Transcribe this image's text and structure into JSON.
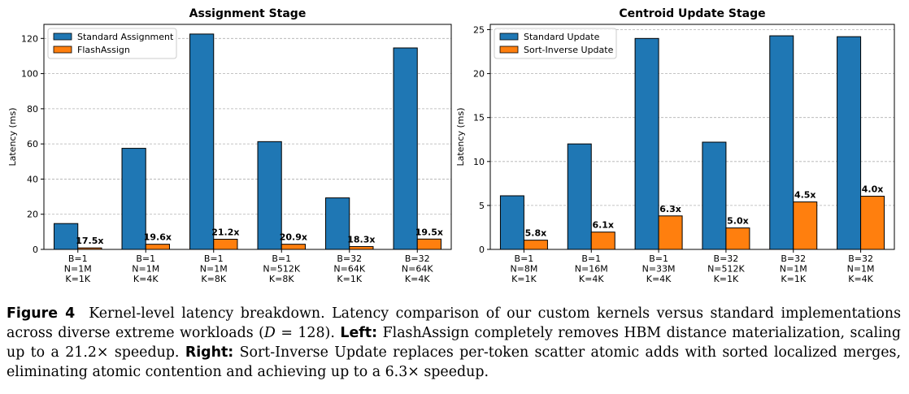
{
  "chart_data": [
    {
      "type": "bar",
      "title": "Assignment Stage",
      "xlabel": "",
      "ylabel": "Latency (ms)",
      "ylim": [
        0,
        128
      ],
      "yticks": [
        0,
        20,
        40,
        60,
        80,
        100,
        120
      ],
      "grid": "y-dashed",
      "legend_position": "top-left",
      "categories": [
        [
          "B=1",
          "N=1M",
          "K=1K"
        ],
        [
          "B=1",
          "N=1M",
          "K=4K"
        ],
        [
          "B=1",
          "N=1M",
          "K=8K"
        ],
        [
          "B=1",
          "N=512K",
          "K=8K"
        ],
        [
          "B=32",
          "N=64K",
          "K=1K"
        ],
        [
          "B=32",
          "N=64K",
          "K=4K"
        ]
      ],
      "series": [
        {
          "name": "Standard Assignment",
          "color": "#1f77b4",
          "values": [
            14.7,
            57.5,
            122.5,
            61.3,
            29.3,
            114.6
          ]
        },
        {
          "name": "FlashAssign",
          "color": "#ff7f0e",
          "values": [
            0.84,
            2.93,
            5.78,
            2.93,
            1.6,
            5.88
          ]
        }
      ],
      "annotations": [
        "17.5x",
        "19.6x",
        "21.2x",
        "20.9x",
        "18.3x",
        "19.5x"
      ]
    },
    {
      "type": "bar",
      "title": "Centroid Update Stage",
      "xlabel": "",
      "ylabel": "Latency (ms)",
      "ylim": [
        0,
        25.6
      ],
      "yticks": [
        0,
        5,
        10,
        15,
        20,
        25
      ],
      "grid": "y-dashed",
      "legend_position": "top-left",
      "categories": [
        [
          "B=1",
          "N=8M",
          "K=1K"
        ],
        [
          "B=1",
          "N=16M",
          "K=4K"
        ],
        [
          "B=1",
          "N=33M",
          "K=4K"
        ],
        [
          "B=32",
          "N=512K",
          "K=1K"
        ],
        [
          "B=32",
          "N=1M",
          "K=1K"
        ],
        [
          "B=32",
          "N=1M",
          "K=4K"
        ]
      ],
      "series": [
        {
          "name": "Standard Update",
          "color": "#1f77b4",
          "values": [
            6.1,
            12.0,
            24.0,
            12.2,
            24.3,
            24.2
          ]
        },
        {
          "name": "Sort-Inverse Update",
          "color": "#ff7f0e",
          "values": [
            1.05,
            1.97,
            3.81,
            2.44,
            5.4,
            6.05
          ]
        }
      ],
      "annotations": [
        "5.8x",
        "6.1x",
        "6.3x",
        "5.0x",
        "4.5x",
        "4.0x"
      ]
    }
  ],
  "caption": {
    "label": "Figure 4",
    "title_text": "Kernel-level latency breakdown. Latency comparison of our custom kernels versus standard implementations across diverse extreme workloads (",
    "math_var": "D",
    "math_rest": " = 128).",
    "left_label": "Left:",
    "left_text": "FlashAssign completely removes HBM distance materialization, scaling up to a 21.2× speedup.",
    "right_label": "Right:",
    "right_text": "Sort-Inverse Update replaces per-token scatter atomic adds with sorted localized merges, eliminating atomic contention and achieving up to a 6.3× speedup."
  }
}
